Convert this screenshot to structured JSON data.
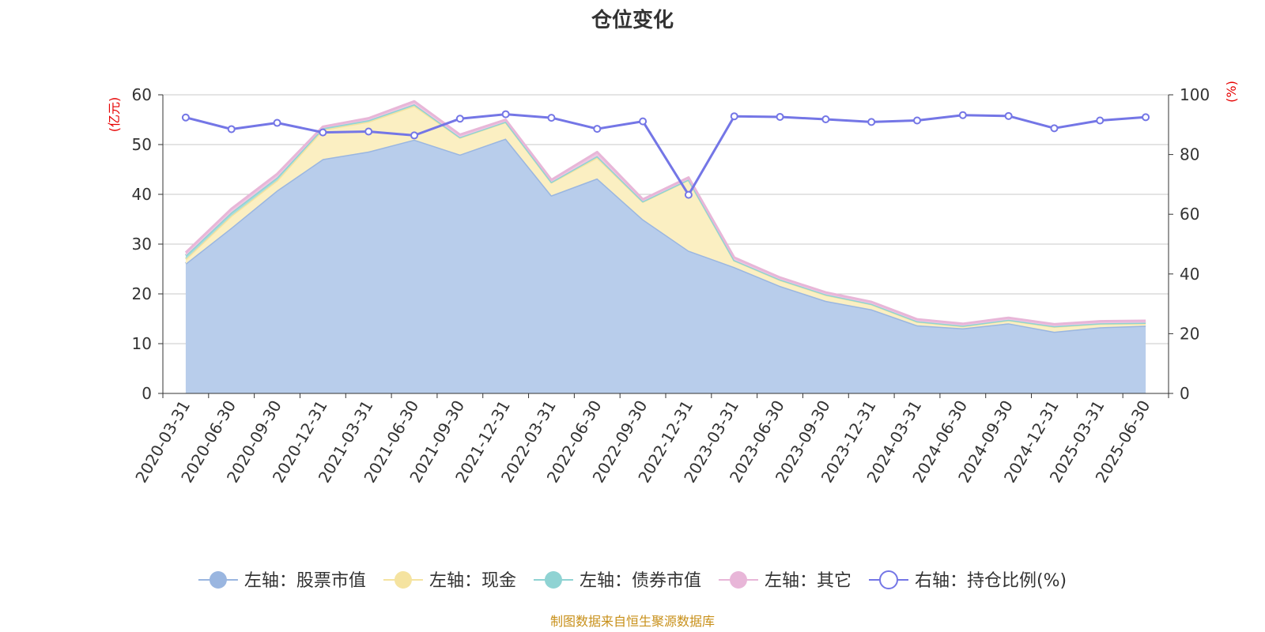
{
  "chart_data": {
    "type": "area",
    "title": "仓位变化",
    "left_unit": "(亿元)",
    "right_unit": "(%)",
    "source": "制图数据来自恒生聚源数据库",
    "categories": [
      "2020-03-31",
      "2020-06-30",
      "2020-09-30",
      "2020-12-31",
      "2021-03-31",
      "2021-06-30",
      "2021-09-30",
      "2021-12-31",
      "2022-03-31",
      "2022-06-30",
      "2022-09-30",
      "2022-12-31",
      "2023-03-31",
      "2023-06-30",
      "2023-09-30",
      "2023-12-31",
      "2024-03-31",
      "2024-06-30",
      "2024-09-30",
      "2024-12-31",
      "2025-03-31",
      "2025-06-30"
    ],
    "y_left": {
      "min": 0,
      "max": 60,
      "ticks": [
        0,
        10,
        20,
        30,
        40,
        50,
        60
      ]
    },
    "y_right": {
      "min": 0,
      "max": 100,
      "ticks": [
        0,
        20,
        40,
        60,
        80,
        100
      ]
    },
    "grid": true,
    "legend_position": "bottom",
    "series": [
      {
        "name": "左轴：股票市值",
        "axis": "left",
        "stacked": true,
        "color": "#9ab6e0",
        "fill": "#b8cdeb",
        "values": [
          26.1,
          33.3,
          40.8,
          47.1,
          48.6,
          51.0,
          48.0,
          51.2,
          39.8,
          43.2,
          35.0,
          28.7,
          25.4,
          21.6,
          18.6,
          16.9,
          13.7,
          13.1,
          14.1,
          12.4,
          13.3,
          13.6
        ]
      },
      {
        "name": "左轴：现金",
        "axis": "left",
        "stacked": true,
        "color": "#f5e3a0",
        "fill": "#fbefc2",
        "values": [
          0.9,
          2.4,
          2.0,
          5.9,
          6.0,
          6.8,
          3.4,
          3.3,
          2.6,
          4.2,
          3.5,
          14.2,
          1.3,
          1.2,
          1.2,
          1.0,
          0.7,
          0.4,
          0.6,
          1.0,
          0.7,
          0.5
        ]
      },
      {
        "name": "左轴：债券市值",
        "axis": "left",
        "stacked": true,
        "color": "#8fd3d3",
        "fill": "#a6dcdc",
        "values": [
          0.7,
          0.7,
          0.6,
          0.3,
          0.3,
          0.3,
          0.1,
          0.1,
          0.1,
          0.3,
          0.1,
          0.1,
          0.1,
          0.1,
          0.1,
          0.1,
          0.1,
          0.1,
          0.1,
          0.1,
          0.1,
          0.1
        ]
      },
      {
        "name": "左轴：其它",
        "axis": "left",
        "stacked": true,
        "color": "#e8b6d8",
        "fill": "#eec7e2",
        "values": [
          0.6,
          0.7,
          0.7,
          0.3,
          0.4,
          0.6,
          0.5,
          0.4,
          0.4,
          0.8,
          0.4,
          0.4,
          0.5,
          0.4,
          0.4,
          0.4,
          0.4,
          0.4,
          0.4,
          0.4,
          0.4,
          0.4
        ]
      },
      {
        "name": "右轴：持仓比例(%)",
        "axis": "right",
        "type": "line",
        "color": "#7476e6",
        "values": [
          92.4,
          88.5,
          90.6,
          87.4,
          87.7,
          86.4,
          92.0,
          93.5,
          92.3,
          88.6,
          91.1,
          66.5,
          92.8,
          92.6,
          91.8,
          90.9,
          91.4,
          93.2,
          92.9,
          88.8,
          91.4,
          92.5
        ]
      }
    ]
  }
}
